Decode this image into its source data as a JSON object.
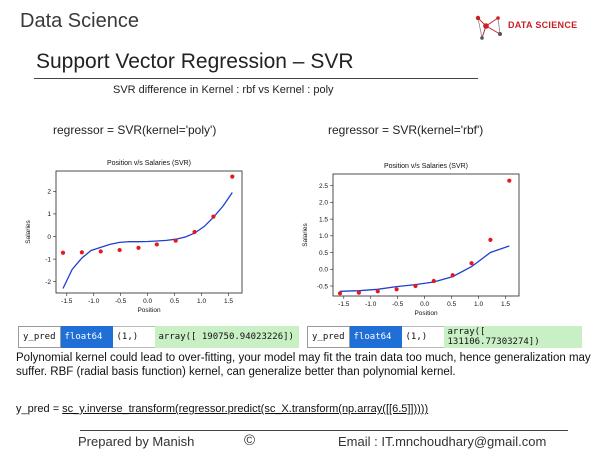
{
  "header": {
    "brand_left": "Data Science",
    "logo_text": "DATA SCIENCE",
    "logo_color": "#c8202a"
  },
  "slide": {
    "title": "Support Vector Regression – SVR",
    "subtitle": "SVR difference in Kernel : rbf vs Kernel : poly",
    "caption_left": "regressor = SVR(kernel='poly')",
    "caption_right": "regressor = SVR(kernel='rbf')"
  },
  "chart_data": [
    {
      "type": "scatter",
      "title": "Position v/s Salaries (SVR)",
      "xlabel": "Position",
      "ylabel": "Salaries",
      "xlim": [
        -1.7,
        1.75
      ],
      "ylim": [
        -2.5,
        2.9
      ],
      "xticks": [
        "-1.5",
        "-1.0",
        "-0.5",
        "0.0",
        "0.5",
        "1.0",
        "1.5"
      ],
      "yticks": [
        "-2",
        "-1",
        "0",
        "1",
        "2"
      ],
      "xtick_values": [
        -1.5,
        -1.0,
        -0.5,
        0.0,
        0.5,
        1.0,
        1.5
      ],
      "ytick_values": [
        -2,
        -1,
        0,
        1,
        2
      ],
      "colors": {
        "points": "#e31a1c",
        "line": "#1f3fd1"
      },
      "points": {
        "x": [
          -1.57,
          -1.22,
          -0.87,
          -0.52,
          -0.17,
          0.17,
          0.52,
          0.87,
          1.22,
          1.57
        ],
        "y": [
          -0.72,
          -0.7,
          -0.66,
          -0.6,
          -0.5,
          -0.35,
          -0.18,
          0.2,
          0.88,
          2.65
        ]
      },
      "line": {
        "x": [
          -1.57,
          -1.4,
          -1.22,
          -1.05,
          -0.87,
          -0.7,
          -0.52,
          -0.35,
          -0.17,
          0.0,
          0.17,
          0.35,
          0.52,
          0.7,
          0.87,
          1.05,
          1.22,
          1.4,
          1.57
        ],
        "y": [
          -2.3,
          -1.45,
          -0.95,
          -0.62,
          -0.48,
          -0.35,
          -0.26,
          -0.23,
          -0.23,
          -0.22,
          -0.2,
          -0.17,
          -0.12,
          -0.02,
          0.15,
          0.45,
          0.85,
          1.35,
          1.95
        ]
      }
    },
    {
      "type": "scatter",
      "title": "Position v/s Salaries (SVR)",
      "xlabel": "Position",
      "ylabel": "Salaries",
      "xlim": [
        -1.7,
        1.75
      ],
      "ylim": [
        -0.8,
        2.85
      ],
      "xticks": [
        "-1.5",
        "-1.0",
        "-0.5",
        "0.0",
        "0.5",
        "1.0",
        "1.5"
      ],
      "yticks": [
        "-0.5",
        "0.0",
        "0.5",
        "1.0",
        "1.5",
        "2.0",
        "2.5"
      ],
      "xtick_values": [
        -1.5,
        -1.0,
        -0.5,
        0.0,
        0.5,
        1.0,
        1.5
      ],
      "ytick_values": [
        -0.5,
        0.0,
        0.5,
        1.0,
        1.5,
        2.0,
        2.5
      ],
      "colors": {
        "points": "#e31a1c",
        "line": "#1f3fd1"
      },
      "points": {
        "x": [
          -1.57,
          -1.22,
          -0.87,
          -0.52,
          -0.17,
          0.17,
          0.52,
          0.87,
          1.22,
          1.57
        ],
        "y": [
          -0.72,
          -0.7,
          -0.66,
          -0.6,
          -0.5,
          -0.35,
          -0.18,
          0.18,
          0.88,
          2.65
        ]
      },
      "line": {
        "x": [
          -1.57,
          -1.22,
          -0.87,
          -0.52,
          -0.17,
          0.17,
          0.52,
          0.87,
          1.22,
          1.57
        ],
        "y": [
          -0.66,
          -0.64,
          -0.6,
          -0.52,
          -0.46,
          -0.38,
          -0.22,
          0.08,
          0.5,
          0.7
        ]
      }
    }
  ],
  "outputs": [
    {
      "name": "y_pred",
      "dtype": "float64",
      "shape": "(1,)",
      "value": "array([ 190750.94023226])"
    },
    {
      "name": "y_pred",
      "dtype": "float64",
      "shape": "(1,)",
      "value": "array([ 131106.77303274])"
    }
  ],
  "notes": {
    "paragraph": "Polynomial kernel could lead to over-fitting, your model may fit the train data too much, hence generalization may suffer. RBF (radial basis function) kernel, can generalize better than polynomial kernel.",
    "formula_prefix": "y_pred = ",
    "formula_code": "sc_y.inverse_transform(regressor.predict(sc_X.transform(np.array([[6.5]]))))"
  },
  "footer": {
    "left": "Prepared by Manish",
    "center": "©",
    "right": "Email : IT.mnchoudhary@gmail.com"
  }
}
